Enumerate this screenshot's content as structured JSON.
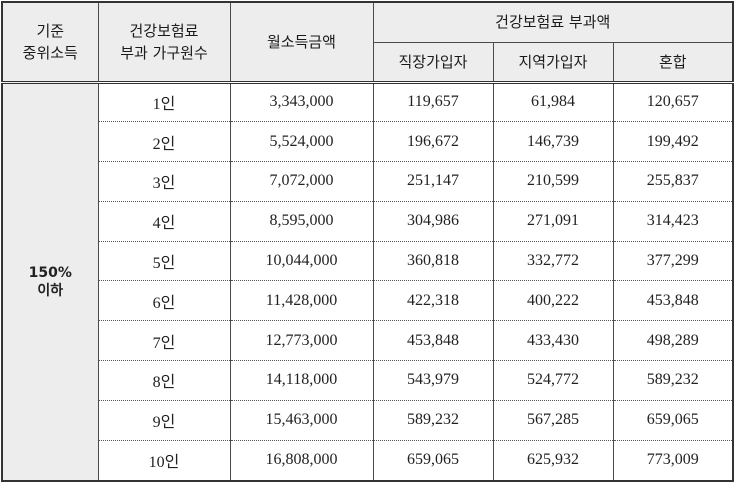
{
  "table": {
    "headers": {
      "standard_median_income": [
        "기준",
        "중위소득"
      ],
      "household_members": [
        "건강보험료",
        "부과 가구원수"
      ],
      "monthly_income": "월소득금액",
      "premium_group": "건강보험료 부과액",
      "employee": "직장가입자",
      "regional": "지역가입자",
      "mixed": "혼합"
    },
    "group_label": [
      "150%",
      "이하"
    ],
    "rows": [
      {
        "members": "1인",
        "income": "3,343,000",
        "employee": "119,657",
        "regional": "61,984",
        "mixed": "120,657"
      },
      {
        "members": "2인",
        "income": "5,524,000",
        "employee": "196,672",
        "regional": "146,739",
        "mixed": "199,492"
      },
      {
        "members": "3인",
        "income": "7,072,000",
        "employee": "251,147",
        "regional": "210,599",
        "mixed": "255,837"
      },
      {
        "members": "4인",
        "income": "8,595,000",
        "employee": "304,986",
        "regional": "271,091",
        "mixed": "314,423"
      },
      {
        "members": "5인",
        "income": "10,044,000",
        "employee": "360,818",
        "regional": "332,772",
        "mixed": "377,299"
      },
      {
        "members": "6인",
        "income": "11,428,000",
        "employee": "422,318",
        "regional": "400,222",
        "mixed": "453,848"
      },
      {
        "members": "7인",
        "income": "12,773,000",
        "employee": "453,848",
        "regional": "433,430",
        "mixed": "498,289"
      },
      {
        "members": "8인",
        "income": "14,118,000",
        "employee": "543,979",
        "regional": "524,772",
        "mixed": "589,232"
      },
      {
        "members": "9인",
        "income": "15,463,000",
        "employee": "589,232",
        "regional": "567,285",
        "mixed": "659,065"
      },
      {
        "members": "10인",
        "income": "16,808,000",
        "employee": "659,065",
        "regional": "625,932",
        "mixed": "773,009"
      }
    ]
  }
}
